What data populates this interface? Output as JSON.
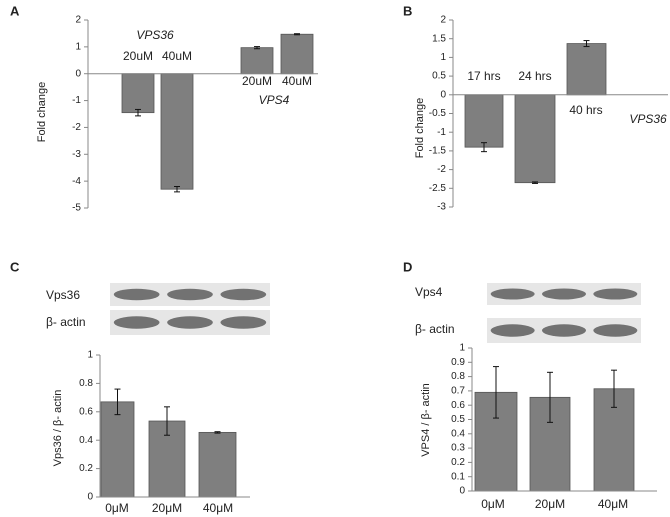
{
  "chart_data": [
    {
      "type": "bar",
      "panel_label": "A",
      "y_label": "Fold  change",
      "categories": [
        "20uM",
        "40uM",
        "20uM",
        "40uM"
      ],
      "values": [
        -1.45,
        -4.3,
        0.97,
        1.47
      ],
      "errors": [
        0.12,
        0.1,
        0.04,
        0.02
      ],
      "annotations": [
        "VPS36",
        "VPS4"
      ],
      "color": "#7f7f7f",
      "ylim": [
        -5,
        2
      ],
      "yticks": [
        -5,
        -4,
        -3,
        -2,
        -1,
        0,
        1,
        2
      ]
    },
    {
      "type": "bar",
      "panel_label": "B",
      "y_label": "Fold  change",
      "categories": [
        "17 hrs",
        "24 hrs",
        "40 hrs"
      ],
      "values": [
        -1.4,
        -2.35,
        1.37
      ],
      "errors": [
        0.12,
        0.02,
        0.08
      ],
      "annotations": [
        "VPS36"
      ],
      "color": "#7f7f7f",
      "ylim": [
        -3,
        2
      ],
      "yticks": [
        -3,
        -2.5,
        -2,
        -1.5,
        -1,
        -0.5,
        0,
        0.5,
        1,
        1.5,
        2
      ]
    },
    {
      "type": "bar",
      "panel_label": "C",
      "y_label": "Vps36 / β- actin",
      "blot_labels": [
        "Vps36",
        "β- actin"
      ],
      "categories": [
        "0μM",
        "20μM",
        "40μM"
      ],
      "values": [
        0.67,
        0.535,
        0.455
      ],
      "errors": [
        0.09,
        0.1,
        0.005
      ],
      "color": "#7f7f7f",
      "ylim": [
        0,
        1
      ],
      "yticks": [
        0,
        0.2,
        0.4,
        0.6,
        0.8,
        1
      ]
    },
    {
      "type": "bar",
      "panel_label": "D",
      "y_label": "VPS4 / β- actin",
      "blot_labels": [
        "Vps4",
        "β- actin"
      ],
      "categories": [
        "0μM",
        "20μM",
        "40μM"
      ],
      "values": [
        0.69,
        0.655,
        0.715
      ],
      "errors": [
        0.18,
        0.175,
        0.13
      ],
      "color": "#7f7f7f",
      "ylim": [
        0,
        1
      ],
      "yticks": [
        0,
        0.1,
        0.2,
        0.3,
        0.4,
        0.5,
        0.6,
        0.7,
        0.8,
        0.9,
        1
      ]
    }
  ]
}
